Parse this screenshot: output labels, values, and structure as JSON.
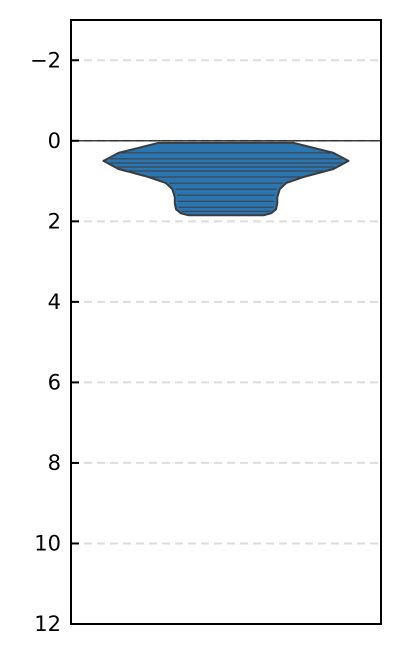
{
  "chart_data": {
    "type": "violin",
    "title": "",
    "xlabel": "",
    "ylabel": "",
    "y_inverted": true,
    "ylim": [
      12,
      -3
    ],
    "yticks": [
      -2,
      0,
      2,
      4,
      6,
      8,
      10,
      12
    ],
    "ytick_labels": [
      "−2",
      "0",
      "2",
      "4",
      "6",
      "8",
      "10",
      "12"
    ],
    "grid": {
      "axis": "y",
      "style": "dashed"
    },
    "reference_line_y": 0,
    "violin": {
      "color": "#2b75b0",
      "edge_color": "#3c3c3c",
      "profile": [
        {
          "y": 0.05,
          "half_width": 0.54
        },
        {
          "y": 0.3,
          "half_width": 0.86
        },
        {
          "y": 0.5,
          "half_width": 0.98
        },
        {
          "y": 0.7,
          "half_width": 0.86
        },
        {
          "y": 0.9,
          "half_width": 0.62
        },
        {
          "y": 1.05,
          "half_width": 0.48
        },
        {
          "y": 1.2,
          "half_width": 0.43
        },
        {
          "y": 1.4,
          "half_width": 0.41
        },
        {
          "y": 1.55,
          "half_width": 0.41
        },
        {
          "y": 1.7,
          "half_width": 0.4
        },
        {
          "y": 1.8,
          "half_width": 0.36
        },
        {
          "y": 1.85,
          "half_width": 0.3
        }
      ],
      "observations": [
        0.05,
        0.3,
        0.45,
        0.55,
        0.65,
        0.75,
        0.9,
        1.05,
        1.2,
        1.35,
        1.5,
        1.65,
        1.75
      ]
    }
  }
}
